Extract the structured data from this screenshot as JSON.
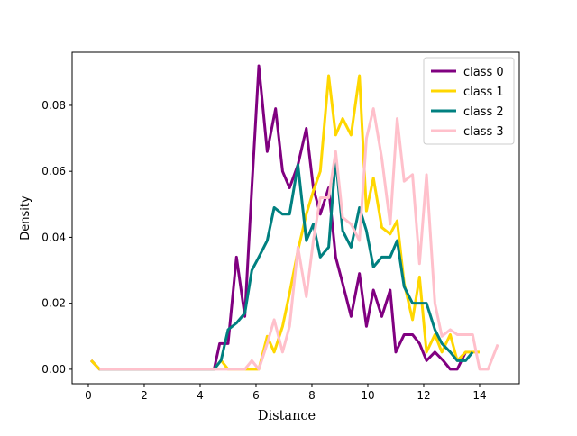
{
  "chart_data": {
    "type": "line",
    "xlabel": "Distance",
    "ylabel": "Density",
    "xlim": [
      -0.58,
      15.42
    ],
    "ylim": [
      -0.0044,
      0.0961
    ],
    "xticks": [
      0,
      2,
      4,
      6,
      8,
      10,
      12,
      14
    ],
    "yticks": [
      {
        "value": 0,
        "label": "0.00"
      },
      {
        "value": 0.02,
        "label": "0.02"
      },
      {
        "value": 0.04,
        "label": "0.04"
      },
      {
        "value": 0.06,
        "label": "0.06"
      },
      {
        "value": 0.08,
        "label": "0.08"
      }
    ],
    "legend": "upper right",
    "series": [
      {
        "name": "class 0",
        "color": "#800080",
        "x": [
          0.1,
          0.4,
          4.5,
          4.7,
          5.0,
          5.3,
          5.6,
          5.85,
          6.1,
          6.4,
          6.7,
          6.95,
          7.2,
          7.5,
          7.8,
          8.05,
          8.3,
          8.6,
          8.85,
          9.1,
          9.4,
          9.7,
          9.95,
          10.2,
          10.5,
          10.8,
          11.0,
          11.3,
          11.6,
          11.85,
          12.1,
          12.4,
          12.7,
          12.95,
          13.2,
          13.5
        ],
        "values": [
          0.0027,
          0,
          0,
          0.0078,
          0.0078,
          0.034,
          0.016,
          0.055,
          0.092,
          0.066,
          0.079,
          0.06,
          0.055,
          0.062,
          0.073,
          0.055,
          0.047,
          0.055,
          0.034,
          0.026,
          0.016,
          0.029,
          0.013,
          0.024,
          0.016,
          0.024,
          0.0052,
          0.0105,
          0.0105,
          0.0078,
          0.0026,
          0.0052,
          0.0026,
          0,
          0,
          0.0052
        ]
      },
      {
        "name": "class 1",
        "color": "#ffd700",
        "x": [
          0.1,
          0.4,
          4.5,
          4.75,
          5.0,
          6.1,
          6.4,
          6.65,
          6.95,
          7.2,
          7.5,
          7.8,
          8.05,
          8.3,
          8.6,
          8.85,
          9.1,
          9.4,
          9.7,
          9.95,
          10.2,
          10.5,
          10.8,
          11.05,
          11.3,
          11.6,
          11.85,
          12.1,
          12.4,
          12.65,
          12.95,
          13.2,
          13.5,
          13.75,
          14.0
        ],
        "values": [
          0.0027,
          0,
          0,
          0.0027,
          0,
          0,
          0.01,
          0.0052,
          0.013,
          0.023,
          0.036,
          0.047,
          0.054,
          0.06,
          0.089,
          0.071,
          0.076,
          0.071,
          0.089,
          0.048,
          0.058,
          0.043,
          0.041,
          0.045,
          0.026,
          0.015,
          0.028,
          0.0052,
          0.0105,
          0.0052,
          0.0105,
          0.0026,
          0.0052,
          0.0052,
          0.0052
        ]
      },
      {
        "name": "class 2",
        "color": "#008080",
        "x": [
          0.4,
          4.5,
          4.75,
          5.0,
          5.3,
          5.6,
          5.85,
          6.1,
          6.4,
          6.65,
          6.95,
          7.2,
          7.5,
          7.8,
          8.05,
          8.3,
          8.6,
          8.85,
          9.1,
          9.4,
          9.7,
          9.95,
          10.2,
          10.5,
          10.8,
          11.05,
          11.3,
          11.6,
          11.85,
          12.1,
          12.4,
          12.65,
          12.95,
          13.2,
          13.5,
          13.75
        ],
        "values": [
          0,
          0,
          0.0027,
          0.012,
          0.014,
          0.017,
          0.03,
          0.034,
          0.039,
          0.049,
          0.047,
          0.047,
          0.062,
          0.039,
          0.044,
          0.034,
          0.037,
          0.064,
          0.042,
          0.037,
          0.049,
          0.042,
          0.031,
          0.034,
          0.034,
          0.039,
          0.025,
          0.02,
          0.02,
          0.02,
          0.012,
          0.0078,
          0.0052,
          0.0026,
          0.0026,
          0.0052
        ]
      },
      {
        "name": "class 3",
        "color": "#ffc0cb",
        "x": [
          0.4,
          5.6,
          5.85,
          6.1,
          6.4,
          6.65,
          6.95,
          7.2,
          7.5,
          7.8,
          8.05,
          8.3,
          8.6,
          8.85,
          9.1,
          9.4,
          9.7,
          9.95,
          10.2,
          10.5,
          10.8,
          11.05,
          11.3,
          11.6,
          11.85,
          12.1,
          12.4,
          12.65,
          12.95,
          13.2,
          13.5,
          13.75,
          14.0,
          14.3,
          14.65
        ],
        "values": [
          0,
          0,
          0.0026,
          0,
          0.0078,
          0.015,
          0.0052,
          0.013,
          0.037,
          0.022,
          0.039,
          0.052,
          0.052,
          0.066,
          0.046,
          0.044,
          0.039,
          0.07,
          0.079,
          0.064,
          0.044,
          0.076,
          0.057,
          0.059,
          0.032,
          0.059,
          0.02,
          0.01,
          0.012,
          0.0105,
          0.0105,
          0.0105,
          0,
          0,
          0.0075
        ]
      }
    ]
  }
}
